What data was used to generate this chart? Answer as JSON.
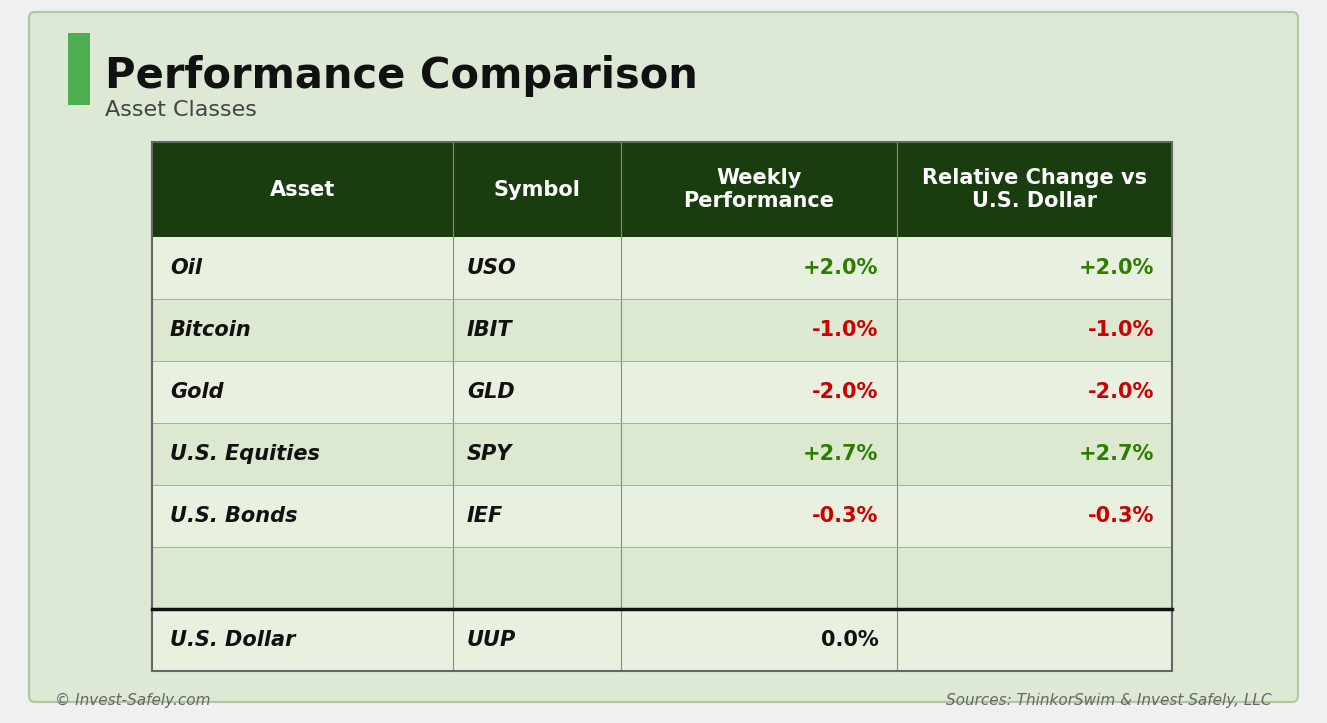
{
  "title": "Performance Comparison",
  "subtitle": "Asset Classes",
  "bg_color": "#dde8d5",
  "outer_bg": "#f0f0f0",
  "header_bg": "#1a3d0f",
  "header_text_color": "#ffffff",
  "row_bg_light": "#e8f0e0",
  "row_bg_dark": "#dce8d0",
  "accent_green": "#2e7d00",
  "accent_red": "#cc0000",
  "black_text": "#111111",
  "green_bar": "#4caf50",
  "col_headers": [
    "Asset",
    "Symbol",
    "Weekly\nPerformance",
    "Relative Change vs\nU.S. Dollar"
  ],
  "rows": [
    {
      "asset": "Oil",
      "symbol": "USO",
      "weekly": "+2.0%",
      "relative": "+2.0%",
      "weekly_color": "green",
      "relative_color": "green"
    },
    {
      "asset": "Bitcoin",
      "symbol": "IBIT",
      "weekly": "-1.0%",
      "relative": "-1.0%",
      "weekly_color": "red",
      "relative_color": "red"
    },
    {
      "asset": "Gold",
      "symbol": "GLD",
      "weekly": "-2.0%",
      "relative": "-2.0%",
      "weekly_color": "red",
      "relative_color": "red"
    },
    {
      "asset": "U.S. Equities",
      "symbol": "SPY",
      "weekly": "+2.7%",
      "relative": "+2.7%",
      "weekly_color": "green",
      "relative_color": "green"
    },
    {
      "asset": "U.S. Bonds",
      "symbol": "IEF",
      "weekly": "-0.3%",
      "relative": "-0.3%",
      "weekly_color": "red",
      "relative_color": "red"
    },
    {
      "asset": "",
      "symbol": "",
      "weekly": "",
      "relative": "",
      "weekly_color": "black",
      "relative_color": "black"
    },
    {
      "asset": "U.S. Dollar",
      "symbol": "UUP",
      "weekly": "0.0%",
      "relative": "",
      "weekly_color": "black",
      "relative_color": "black"
    }
  ],
  "footer_left": "© Invest-Safely.com",
  "footer_right": "Sources: ThinkorSwim & Invest Safely, LLC",
  "title_fontsize": 30,
  "subtitle_fontsize": 16,
  "header_fontsize": 15,
  "cell_fontsize": 15,
  "footer_fontsize": 11
}
